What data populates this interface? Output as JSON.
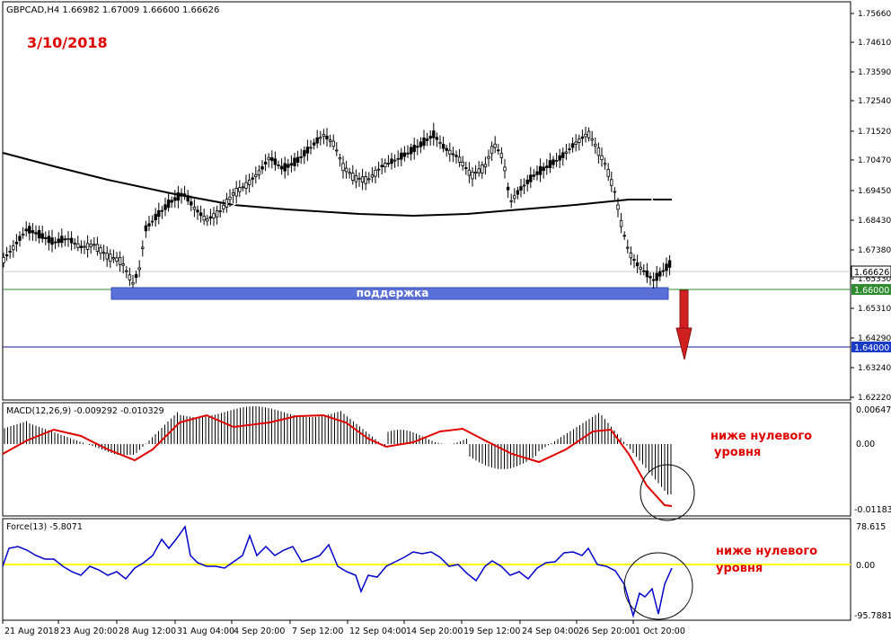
{
  "symbol_header": "GBPCAD,H4  1.66982 1.67009 1.66600 1.66626",
  "date_label": "3/10/2018",
  "support_label": "поддержка",
  "price_axis": [
    "1.75660",
    "1.74610",
    "1.73590",
    "1.72540",
    "1.71520",
    "1.70470",
    "1.69450",
    "1.68430",
    "1.67380",
    "1.65330",
    "1.65310",
    "1.64290",
    "1.63240",
    "1.62220"
  ],
  "price_tags": {
    "current": "1.66626",
    "support": "1.66000",
    "target": "1.64000"
  },
  "macd": {
    "header": "MACD(12,26,9) -0.009292 -0.010329",
    "axis_top": "0.006474",
    "axis_zero": "0.00",
    "axis_bottom": "-0.011839",
    "note_line1": "ниже нулевого",
    "note_line2": "уровня"
  },
  "force": {
    "header": "Force(13) -5.8071",
    "axis_top": "78.615",
    "axis_zero": "0.00",
    "axis_bottom": "-95.7881",
    "note_line1": "ниже нулевого",
    "note_line2": "уровня"
  },
  "time_axis": [
    "21 Aug 2018",
    "23 Aug 20:00",
    "28 Aug 12:00",
    "31 Aug 04:00",
    "4 Sep 20:00",
    "7 Sep 12:00",
    "12 Sep 04:00",
    "14 Sep 20:00",
    "19 Sep 12:00",
    "24 Sep 04:00",
    "26 Sep 20:00",
    "1 Oct 20:00"
  ],
  "colors": {
    "support_zone": "#5a6fd8",
    "macd_signal": "#e00000",
    "force_line": "#0000cc",
    "zero_level": "#ffff00",
    "arrow": "#d02020",
    "ma_slow": "#000000",
    "ma_fast": "#ffffff",
    "candles": "#000000"
  }
}
